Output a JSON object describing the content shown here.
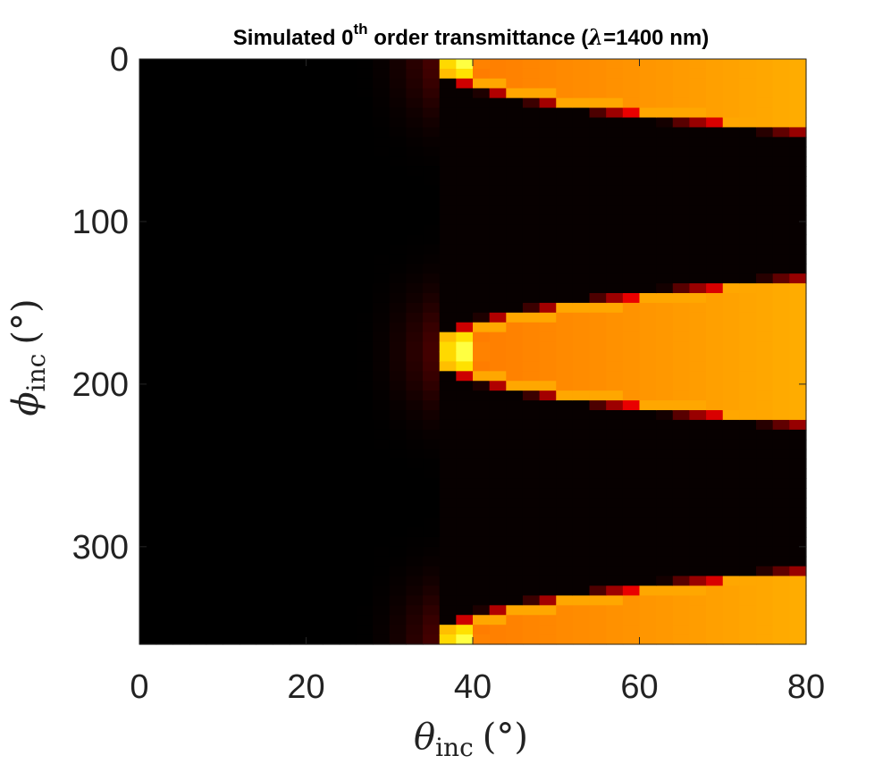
{
  "chart_data": {
    "type": "heatmap",
    "title_parts": {
      "prefix": "Simulated 0",
      "superscript": "th",
      "middle": " order transmittance (",
      "lambda": "λ",
      "suffix": "=1400 nm)"
    },
    "xlabel": {
      "symbol": "θ",
      "subscript": "inc",
      "unit": "(°)"
    },
    "ylabel": {
      "symbol": "ϕ",
      "subscript": "inc",
      "unit": "(°)"
    },
    "xlim": [
      0,
      80
    ],
    "ylim": [
      0,
      360
    ],
    "y_reversed": true,
    "xticks": [
      0,
      20,
      40,
      60,
      80
    ],
    "yticks": [
      0,
      100,
      200,
      300
    ],
    "colormap": "hot",
    "grid": false,
    "grid_cells": {
      "x_step_deg": 2,
      "y_step_deg": 6
    },
    "value_model": {
      "onset_theta_deg": 36,
      "peak_theta_deg": 38.5,
      "band_centers_phi_deg": [
        0,
        180,
        360
      ],
      "band_half_width_at_onset_deg": 4,
      "band_half_width_at_80_deg": 44,
      "band_level": 0.55,
      "edge_peak_level": 0.85,
      "sub_onset_tail_start_theta_deg": 26,
      "sub_onset_tail_level": 0.12
    }
  }
}
